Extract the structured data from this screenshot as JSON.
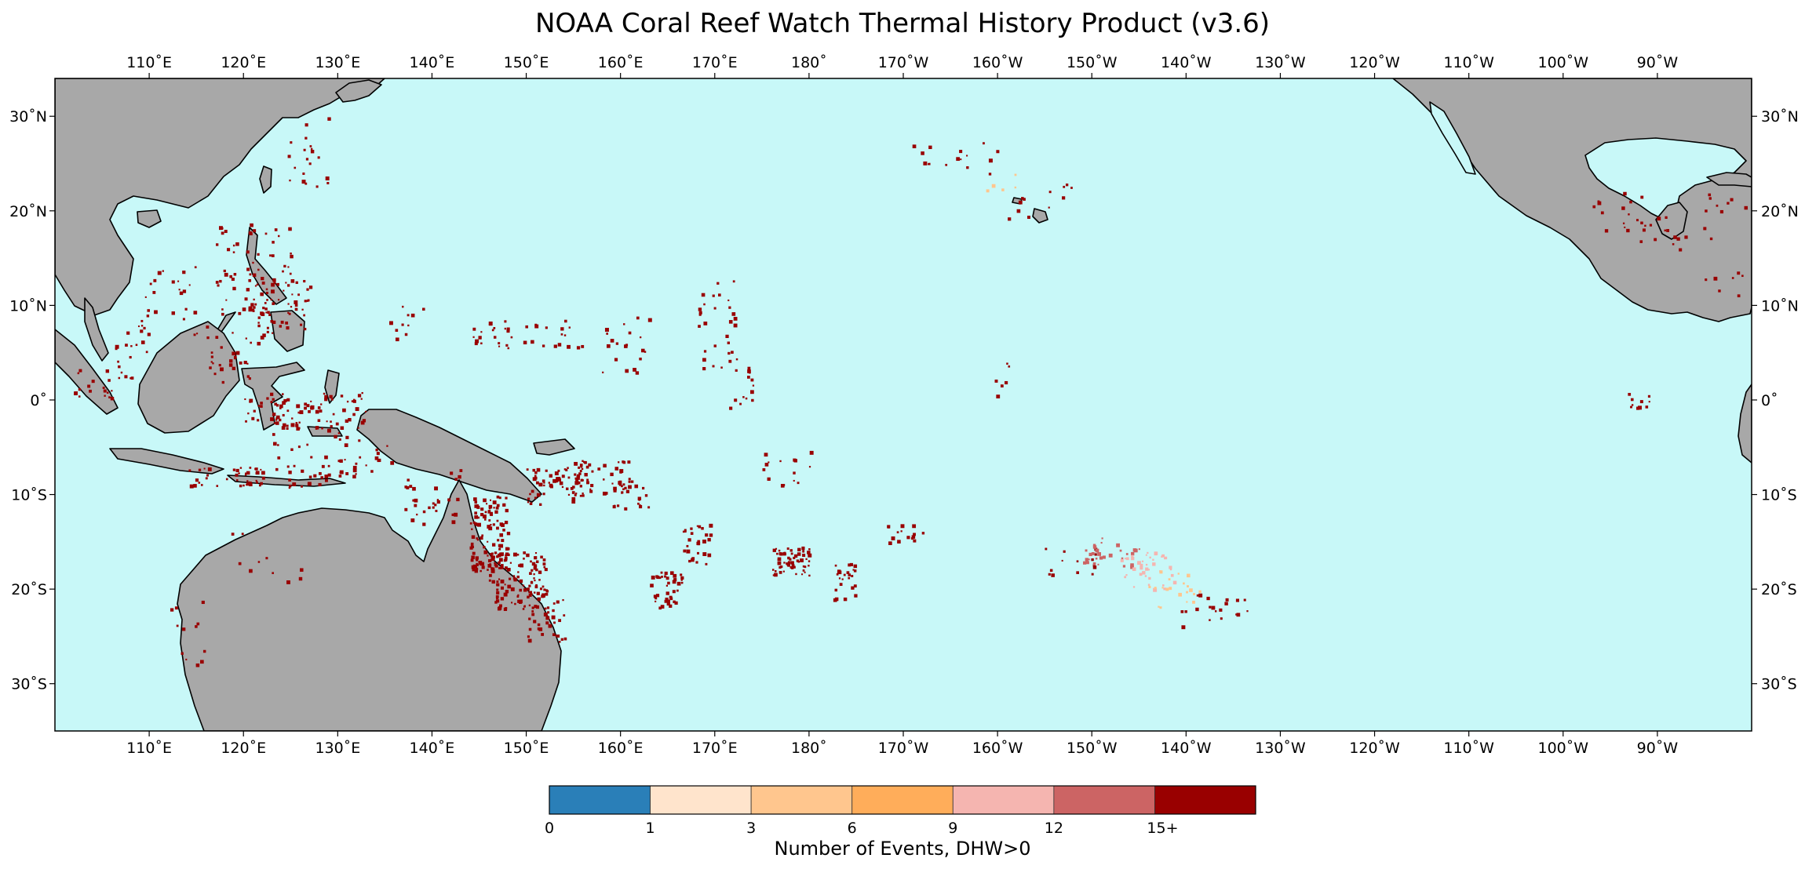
{
  "title": "NOAA Coral Reef Watch Thermal History Product (v3.6)",
  "map": {
    "projection": "Plate Carree, Pacific-centered",
    "lon_range": [
      100,
      280
    ],
    "lat_range": [
      -35,
      34
    ],
    "ocean_color": "#c8f8f8",
    "land_color": "#a8a8a8",
    "coast_color": "#000000",
    "lon_ticks": [
      {
        "lon": 110,
        "label": "110˚E"
      },
      {
        "lon": 120,
        "label": "120˚E"
      },
      {
        "lon": 130,
        "label": "130˚E"
      },
      {
        "lon": 140,
        "label": "140˚E"
      },
      {
        "lon": 150,
        "label": "150˚E"
      },
      {
        "lon": 160,
        "label": "160˚E"
      },
      {
        "lon": 170,
        "label": "170˚E"
      },
      {
        "lon": 180,
        "label": "180˚"
      },
      {
        "lon": 190,
        "label": "170˚W"
      },
      {
        "lon": 200,
        "label": "160˚W"
      },
      {
        "lon": 210,
        "label": "150˚W"
      },
      {
        "lon": 220,
        "label": "140˚W"
      },
      {
        "lon": 230,
        "label": "130˚W"
      },
      {
        "lon": 240,
        "label": "120˚W"
      },
      {
        "lon": 250,
        "label": "110˚W"
      },
      {
        "lon": 260,
        "label": "100˚W"
      },
      {
        "lon": 270,
        "label": "90˚W"
      }
    ],
    "lat_ticks": [
      {
        "lat": 30,
        "label": "30˚N"
      },
      {
        "lat": 20,
        "label": "20˚N"
      },
      {
        "lat": 10,
        "label": "10˚N"
      },
      {
        "lat": 0,
        "label": "0˚"
      },
      {
        "lat": -10,
        "label": "10˚S"
      },
      {
        "lat": -20,
        "label": "20˚S"
      },
      {
        "lat": -30,
        "label": "30˚S"
      }
    ]
  },
  "colorbar": {
    "title": "Number of Events, DHW>0",
    "bins": [
      {
        "label": "0",
        "color": "#2a7fb8"
      },
      {
        "label": "1",
        "color": "#ffe4cc"
      },
      {
        "label": "3",
        "color": "#ffc68e"
      },
      {
        "label": "6",
        "color": "#ffad5a"
      },
      {
        "label": "9",
        "color": "#f5b5b0"
      },
      {
        "label": "12",
        "color": "#cc6464"
      },
      {
        "label": "15+",
        "color": "#990000"
      }
    ]
  }
}
